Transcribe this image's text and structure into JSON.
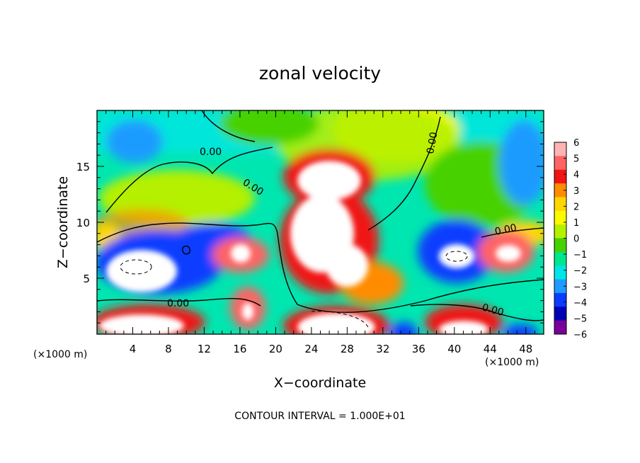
{
  "chart_data": {
    "type": "heatmap",
    "title": "zonal velocity",
    "xlabel": "X−coordinate",
    "ylabel": "Z−coordinate",
    "x_unit_label": "(×1000 m)",
    "y_unit_label": "(×1000 m)",
    "footer": "CONTOUR INTERVAL = 1.000E+01",
    "xlim": [
      0,
      50
    ],
    "ylim": [
      0,
      20
    ],
    "x_ticks": [
      4,
      8,
      12,
      16,
      20,
      24,
      28,
      32,
      36,
      40,
      44,
      48
    ],
    "y_ticks": [
      5,
      10,
      15
    ],
    "colorbar": {
      "min": -6,
      "max": 6,
      "ticks": [
        6,
        5,
        4,
        3,
        2,
        1,
        0,
        -1,
        -2,
        -3,
        -4,
        -5,
        -6
      ],
      "colors": [
        "#ffb4b4",
        "#ff6464",
        "#f01414",
        "#ff8c00",
        "#ffd700",
        "#fafa00",
        "#b4f000",
        "#46d200",
        "#00e68c",
        "#00e6e6",
        "#1e9bff",
        "#0a3cff",
        "#0000b4",
        "#78009b"
      ]
    },
    "contour_labels": [
      "0.00",
      "0.00",
      "0.00",
      "0.00",
      "0.00",
      "0.00"
    ],
    "contour_interval": "1.000E+01"
  }
}
